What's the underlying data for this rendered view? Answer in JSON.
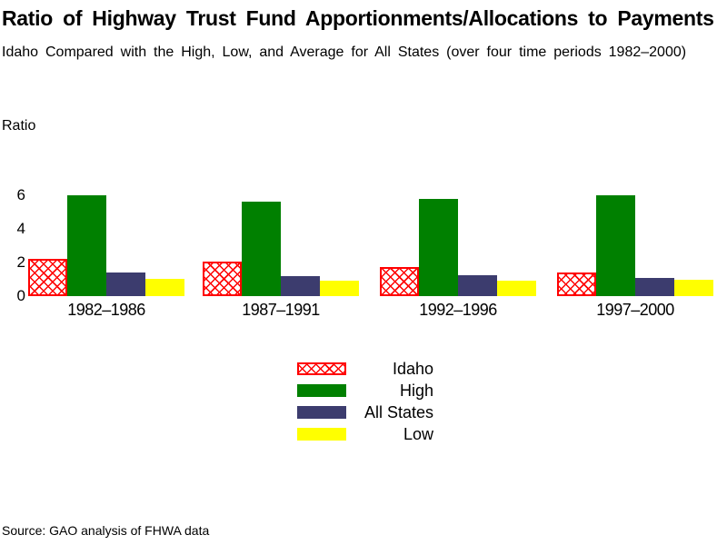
{
  "page": {
    "title": "Ratio of Highway Trust Fund Apportionments/Allocations to Payments",
    "subtitle": "Idaho Compared with the High, Low, and Average for All States (over four time periods 1982–2000)",
    "source_note": "Source: GAO analysis of FHWA data"
  },
  "chart_data": {
    "type": "bar",
    "title": "Ratio of Highway Trust Fund Apportionments/Allocations to Payments",
    "subtitle": "Idaho Compared with the High, Low, and Average for All States (over four time periods 1982–2000)",
    "ylabel": "Ratio",
    "xlabel": "",
    "categories": [
      "1982–1986",
      "1987–1991",
      "1992–1996",
      "1997–2000"
    ],
    "series": [
      {
        "name": "Idaho",
        "pattern": "red-crosshatch",
        "color": "#ff0000",
        "values": [
          2.2,
          2.05,
          1.75,
          1.4
        ]
      },
      {
        "name": "High",
        "color": "#008000",
        "values": [
          6.0,
          5.6,
          5.8,
          6.0
        ]
      },
      {
        "name": "All States",
        "color": "#3c3c6e",
        "values": [
          1.4,
          1.2,
          1.25,
          1.1
        ]
      },
      {
        "name": "Low",
        "color": "#ffff00",
        "values": [
          1.0,
          0.9,
          0.9,
          0.95
        ]
      }
    ],
    "yticks": [
      0,
      2,
      4,
      6
    ],
    "ylim": [
      0,
      6.5
    ],
    "grid": false,
    "legend_position": "below-center",
    "source": "Source: GAO analysis of FHWA data"
  }
}
